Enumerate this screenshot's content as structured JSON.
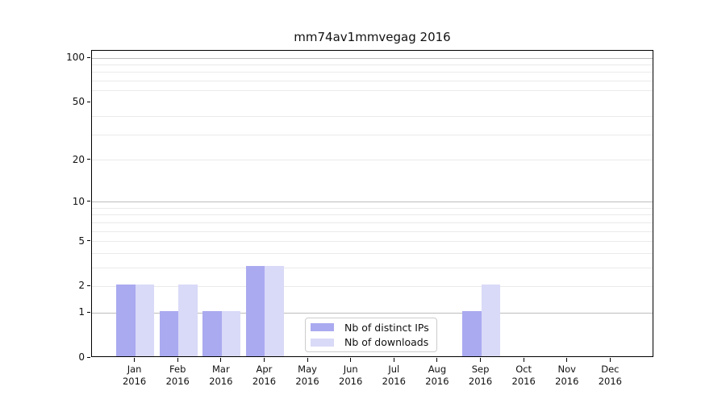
{
  "title": "mm74av1mmvegag 2016",
  "chart_data": {
    "type": "bar",
    "title": "mm74av1mmvegag 2016",
    "categories": [
      "Jan",
      "Feb",
      "Mar",
      "Apr",
      "May",
      "Jun",
      "Jul",
      "Aug",
      "Sep",
      "Oct",
      "Nov",
      "Dec"
    ],
    "category_year": "2016",
    "series": [
      {
        "name": "Nb of distinct IPs",
        "color": "#aaaaf0",
        "values": [
          2,
          1,
          1,
          3,
          0,
          0,
          0,
          0,
          1,
          0,
          0,
          0
        ]
      },
      {
        "name": "Nb of downloads",
        "color": "#d9d9f8",
        "values": [
          2,
          2,
          1,
          3,
          0,
          0,
          0,
          0,
          2,
          0,
          0,
          0
        ]
      }
    ],
    "xlabel": "",
    "ylabel": "",
    "yscale": "log1p",
    "ylim": [
      0,
      111
    ],
    "y_ticks": [
      0,
      1,
      2,
      5,
      10,
      20,
      50,
      100
    ],
    "y_major_gridlines": [
      1,
      10,
      100
    ],
    "y_minor_gridlines": [
      2,
      3,
      4,
      5,
      6,
      7,
      8,
      9,
      20,
      30,
      40,
      60,
      70,
      80,
      90
    ],
    "grid": true,
    "legend_position": "lower center"
  },
  "legend": {
    "items": [
      {
        "label": "Nb of distinct IPs"
      },
      {
        "label": "Nb of downloads"
      }
    ]
  },
  "colors": {
    "background": "#ffffff",
    "axis": "#000000",
    "minor_grid": "#eaeaea",
    "major_grid": "#bdbdbd",
    "legend_border": "#cccccc",
    "bar_ips": "#aaaaf0",
    "bar_downloads": "#d9d9f8"
  }
}
